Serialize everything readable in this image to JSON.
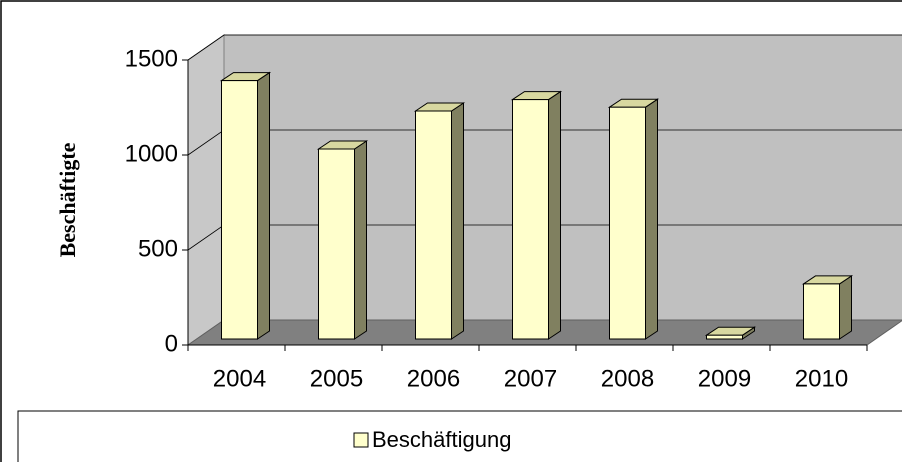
{
  "chart_data": {
    "type": "bar",
    "y_label": "Beschäftigte",
    "categories": [
      "2004",
      "2005",
      "2006",
      "2007",
      "2008",
      "2009",
      "2010"
    ],
    "series": [
      {
        "name": "Beschäftigung",
        "color": "#ffffcc",
        "values": [
          1360,
          1000,
          1200,
          1260,
          1220,
          20,
          290
        ]
      }
    ],
    "ylim": [
      0,
      1500
    ],
    "yticks": [
      0,
      500,
      1000,
      1500
    ],
    "grid": true,
    "legend": "bottom"
  }
}
